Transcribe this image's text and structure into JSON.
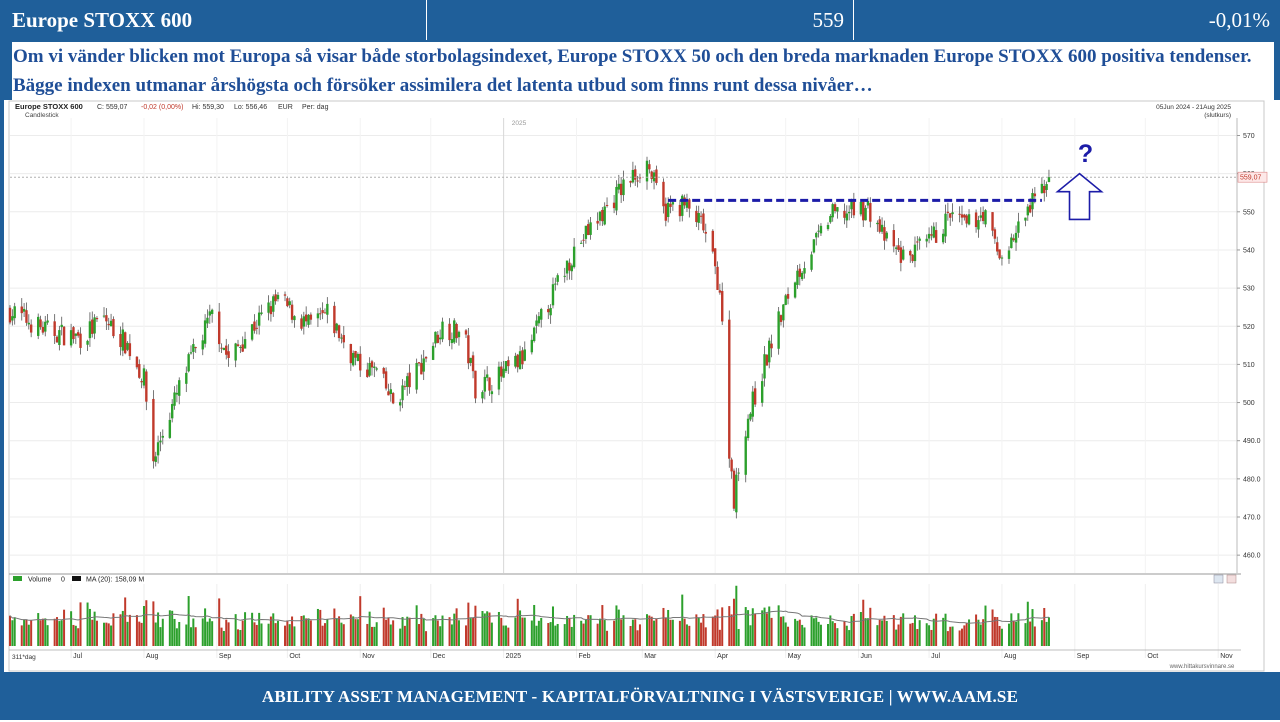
{
  "header": {
    "title": "Europe STOXX 600",
    "last": "559",
    "change": "-0,01%"
  },
  "description": "Om vi vänder blicken mot Europa så visar både storbolagsindexet, Europe STOXX 50 och den breda marknaden Europe STOXX 600 positiva tendenser. Bägge indexen utmanar årshögsta och försöker assimilera det latenta utbud som finns runt dessa nivåer…",
  "footer": "ABILITY ASSET MANAGEMENT -  KAPITALFÖRVALTNING I VÄSTSVERIGE   |   WWW.AAM.SE",
  "chart_data": {
    "type": "candlestick",
    "instrument": "Europe STOXX 600",
    "info_line": {
      "close": "C: 559,07",
      "change": "-0,02 (0,00%)",
      "high": "Hi: 559,30",
      "low": "Lo: 556,46",
      "currency": "EUR",
      "period": "Per: dag"
    },
    "style_label": "Candlestick",
    "date_range": "05Jun 2024 - 21Aug 2025",
    "range_note": "(slutkurs)",
    "year_marker": "2025",
    "last_price_label": "559,07",
    "yaxis_ticks": [
      "570",
      "560",
      "550",
      "540",
      "530",
      "520",
      "510",
      "500",
      "490.0",
      "480.0",
      "470.0",
      "460.0"
    ],
    "ylim": [
      455,
      573
    ],
    "months": [
      "Jul",
      "Aug",
      "Sep",
      "Oct",
      "Nov",
      "Dec",
      "2025",
      "Feb",
      "Mar",
      "Apr",
      "May",
      "Jun",
      "Jul",
      "Aug",
      "Sep",
      "Oct",
      "Nov"
    ],
    "bottom_left_label": "311*dag",
    "volume_legend": {
      "volume": "Volume",
      "volume_value": "0",
      "ma": "MA (20):",
      "ma_value": "158,09 M"
    },
    "resistance_level": 553,
    "annotation": "?",
    "source": "www.hittakursvinnare.se",
    "price_path": [
      [
        "2024-06-05",
        524
      ],
      [
        "2024-06-20",
        519
      ],
      [
        "2024-07-05",
        517
      ],
      [
        "2024-07-15",
        522
      ],
      [
        "2024-07-25",
        515
      ],
      [
        "2024-08-01",
        506
      ],
      [
        "2024-08-05",
        485
      ],
      [
        "2024-08-10",
        494
      ],
      [
        "2024-08-20",
        510
      ],
      [
        "2024-08-30",
        523
      ],
      [
        "2024-09-06",
        511
      ],
      [
        "2024-09-15",
        519
      ],
      [
        "2024-09-27",
        527
      ],
      [
        "2024-10-10",
        520
      ],
      [
        "2024-10-18",
        523
      ],
      [
        "2024-10-31",
        510
      ],
      [
        "2024-11-08",
        508
      ],
      [
        "2024-11-15",
        500
      ],
      [
        "2024-11-25",
        508
      ],
      [
        "2024-12-06",
        520
      ],
      [
        "2024-12-15",
        518
      ],
      [
        "2024-12-20",
        504
      ],
      [
        "2024-12-31",
        507
      ],
      [
        "2025-01-10",
        512
      ],
      [
        "2025-01-20",
        526
      ],
      [
        "2025-01-31",
        540
      ],
      [
        "2025-02-10",
        548
      ],
      [
        "2025-02-20",
        556
      ],
      [
        "2025-03-03",
        563
      ],
      [
        "2025-03-10",
        550
      ],
      [
        "2025-03-18",
        552
      ],
      [
        "2025-03-27",
        546
      ],
      [
        "2025-04-03",
        530
      ],
      [
        "2025-04-07",
        488
      ],
      [
        "2025-04-09",
        475
      ],
      [
        "2025-04-14",
        494
      ],
      [
        "2025-04-25",
        516
      ],
      [
        "2025-05-05",
        533
      ],
      [
        "2025-05-15",
        543
      ],
      [
        "2025-05-20",
        549
      ],
      [
        "2025-05-28",
        550
      ],
      [
        "2025-06-05",
        551
      ],
      [
        "2025-06-13",
        542
      ],
      [
        "2025-06-20",
        538
      ],
      [
        "2025-06-30",
        541
      ],
      [
        "2025-07-10",
        549
      ],
      [
        "2025-07-17",
        546
      ],
      [
        "2025-07-24",
        550
      ],
      [
        "2025-07-31",
        538
      ],
      [
        "2025-08-05",
        542
      ],
      [
        "2025-08-12",
        550
      ],
      [
        "2025-08-21",
        559
      ]
    ]
  }
}
